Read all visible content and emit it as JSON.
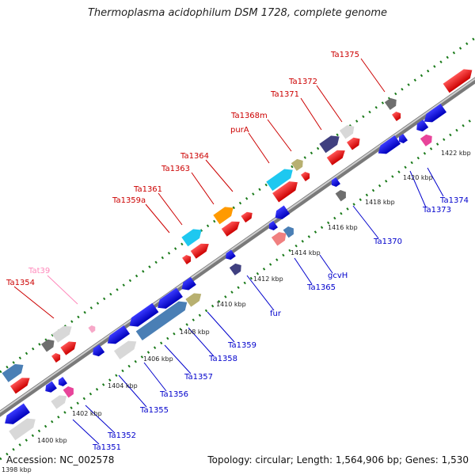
{
  "title": "Thermoplasma acidophilum DSM 1728, complete genome",
  "footer": {
    "accession": "Accession: NC_002578",
    "summary": "Topology: circular; Length: 1,564,906 bp; Genes: 1,530"
  },
  "colors": {
    "backbone": "#8c8c8c",
    "dots": "#1a7a1a",
    "forward_label": "#cc0000",
    "reverse_label": "#0000cc",
    "trna_label": "#ff88bb"
  },
  "scale_ticks": [
    "1398 kbp",
    "1400 kbp",
    "1402 kbp",
    "1404 kbp",
    "1406 kbp",
    "1408 kbp",
    "1410 kbp",
    "1412 kbp",
    "1414 kbp",
    "1416 kbp",
    "1418 kbp",
    "1420 kbp",
    "1422 kbp"
  ],
  "forward_labels": [
    "Ta1354",
    "Tat39",
    "Ta1359a",
    "Ta1361",
    "Ta1363",
    "Ta1364",
    "purA",
    "Ta1368m",
    "Ta1371",
    "Ta1372",
    "Ta1375"
  ],
  "reverse_labels": [
    "Ta1351",
    "Ta1352",
    "Ta1355",
    "Ta1356",
    "Ta1357",
    "Ta1358",
    "Ta1359",
    "fur",
    "Ta1365",
    "gcvH",
    "Ta1370",
    "Ta1373",
    "Ta1374"
  ]
}
